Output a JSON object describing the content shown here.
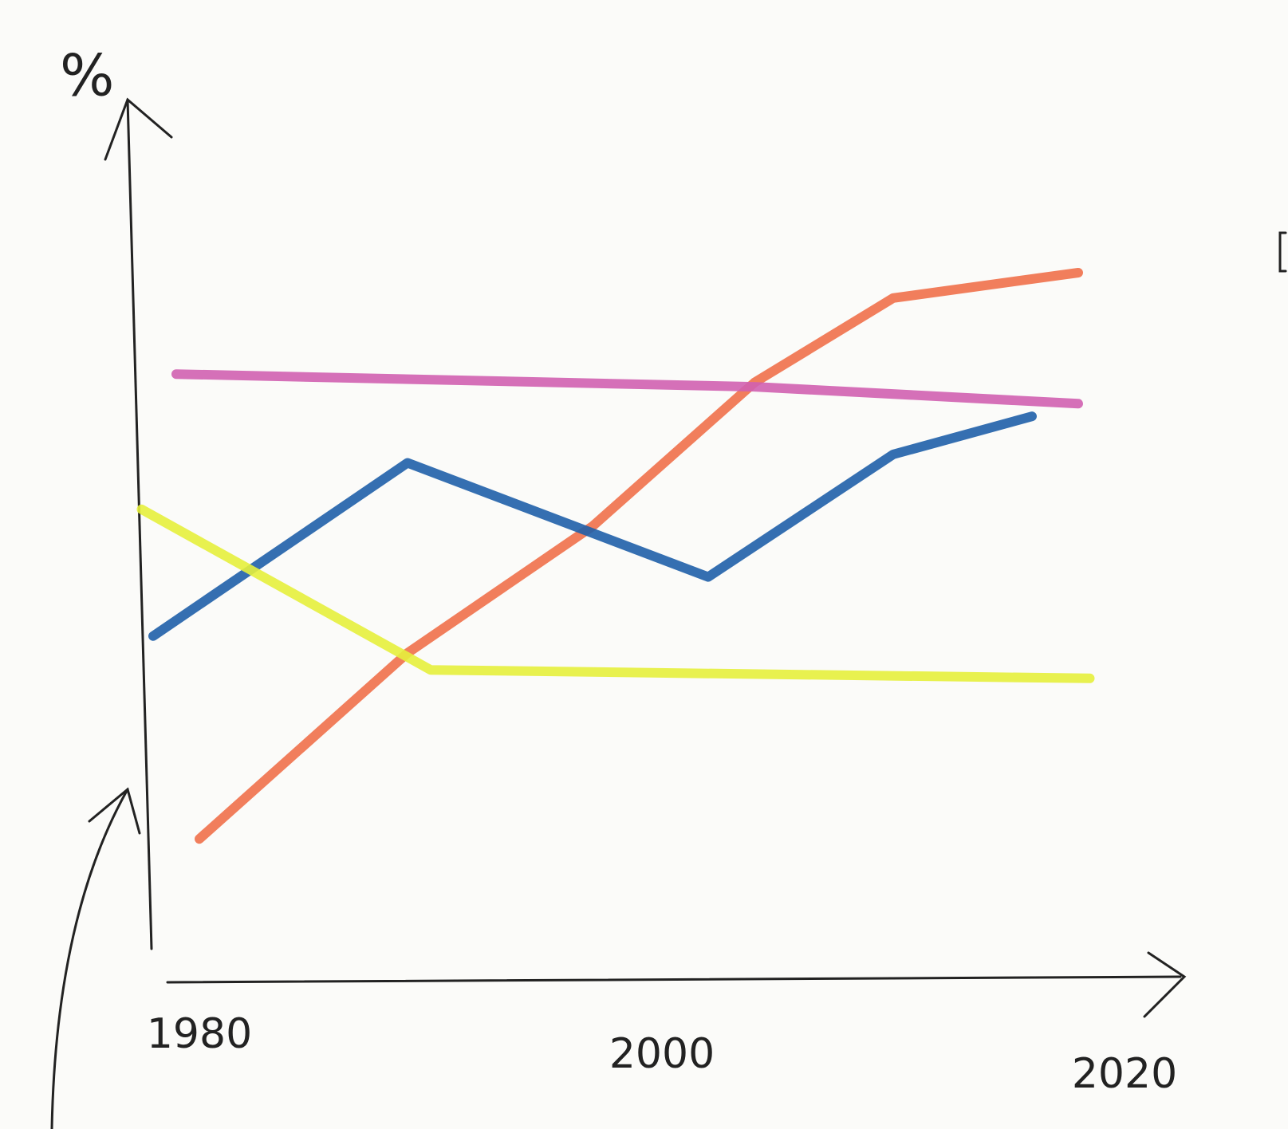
{
  "chart_data": {
    "type": "line",
    "y_label": "%",
    "xlim": [
      1977,
      2022
    ],
    "xticks": [
      1980,
      2000,
      2020
    ],
    "ylim": [
      0,
      100
    ],
    "series": [
      {
        "color": "#f0704a",
        "x": [
          1980,
          1989,
          1997,
          2004,
          2010,
          2018
        ],
        "values": [
          13,
          35,
          50,
          67,
          77,
          80
        ]
      },
      {
        "color": "#d060b0",
        "x": [
          1979,
          2004,
          2018
        ],
        "values": [
          68,
          66.5,
          64.5
        ]
      },
      {
        "color": "#1f5fa8",
        "x": [
          1978,
          1989,
          2002,
          2010,
          2016
        ],
        "values": [
          37,
          57.5,
          44,
          58.5,
          63
        ]
      },
      {
        "color": "#e6f03c",
        "x": [
          1977.5,
          1990,
          2018.5
        ],
        "values": [
          52,
          33,
          32
        ]
      }
    ]
  }
}
